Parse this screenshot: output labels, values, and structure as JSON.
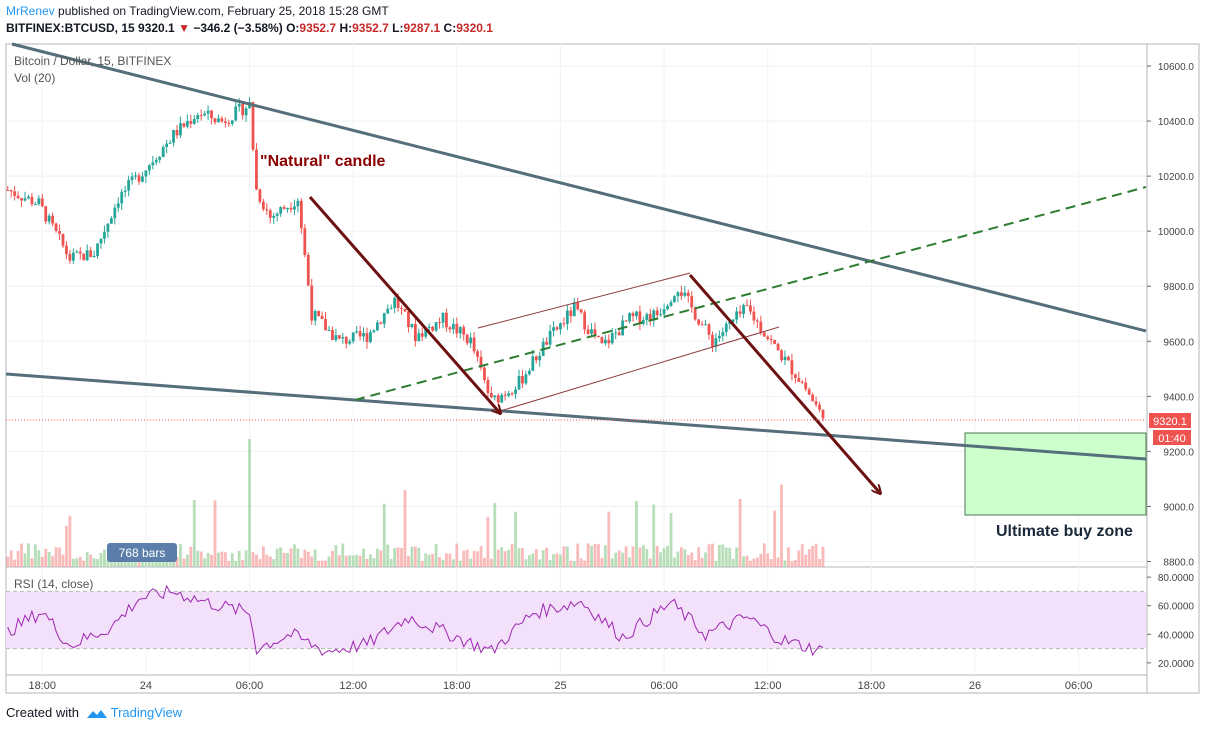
{
  "header": {
    "author": "MrRenev",
    "published": "published on TradingView.com, February 25, 2018 15:28 GMT",
    "symbol": "BITFINEX:BTCUSD, 15",
    "last": "9320.1",
    "change": "−346.2 (−3.58%)",
    "o_label": "O:",
    "o": "9352.7",
    "h_label": "H:",
    "h": "9352.7",
    "l_label": "L:",
    "l": "9287.1",
    "c_label": "C:",
    "c": "9320.1"
  },
  "footer": {
    "created": "Created with",
    "brand": "TradingView"
  },
  "colors": {
    "up": "#26a69a",
    "down": "#ef5350",
    "trend": "#546e7a",
    "channel": "#8d3b3b",
    "arrow": "#6d1010",
    "dashed": "#2e7d32",
    "buyzone": "#ccffcc",
    "rsi": "#9c27b0",
    "rsi_band": "#f3e0fa",
    "last_price": "#ef5350"
  },
  "chart_data": {
    "type": "candlestick",
    "title": "Bitcoin / Dollar, 15, BITFINEX",
    "volume_label": "Vol (20)",
    "rsi_label": "RSI (14, close)",
    "price_ticks": [
      "10600.0",
      "10400.0",
      "10200.0",
      "10000.0",
      "9800.0",
      "9600.0",
      "9400.0",
      "9200.0",
      "9000.0",
      "8800.0"
    ],
    "price_tick_values": [
      10600,
      10400,
      10200,
      10000,
      9800,
      9600,
      9400,
      9200,
      9000,
      8800
    ],
    "ylim": [
      8780,
      10680
    ],
    "rsi_ticks": [
      "80.0000",
      "60.0000",
      "40.0000",
      "20.0000"
    ],
    "rsi_tick_values": [
      80,
      60,
      40,
      20
    ],
    "rsi_band": [
      30,
      70
    ],
    "time_ticks": [
      "18:00",
      "24",
      "06:00",
      "12:00",
      "18:00",
      "25",
      "06:00",
      "12:00",
      "18:00",
      "26",
      "06:00"
    ],
    "time_tick_bars": [
      10,
      40,
      70,
      100,
      130,
      160,
      190,
      220,
      250,
      280,
      310
    ],
    "bars_visible": 330,
    "last_price_label": "9320.1",
    "countdown_label": "01:40",
    "last_price": 9320.1,
    "bars_badge": "768 bars",
    "annotations": {
      "natural_candle": "\"Natural\" candle",
      "buy_zone": "Ultimate buy zone"
    },
    "key_points": [
      {
        "bar": 0,
        "price": 10150
      },
      {
        "bar": 9,
        "price": 10100
      },
      {
        "bar": 18,
        "price": 9900
      },
      {
        "bar": 25,
        "price": 9920
      },
      {
        "bar": 32,
        "price": 10120
      },
      {
        "bar": 40,
        "price": 10230
      },
      {
        "bar": 48,
        "price": 10350
      },
      {
        "bar": 55,
        "price": 10430
      },
      {
        "bar": 62,
        "price": 10400
      },
      {
        "bar": 70,
        "price": 10460
      },
      {
        "bar": 72,
        "price": 10150
      },
      {
        "bar": 76,
        "price": 10050
      },
      {
        "bar": 84,
        "price": 10120
      },
      {
        "bar": 88,
        "price": 9700
      },
      {
        "bar": 96,
        "price": 9600
      },
      {
        "bar": 104,
        "price": 9620
      },
      {
        "bar": 112,
        "price": 9750
      },
      {
        "bar": 118,
        "price": 9620
      },
      {
        "bar": 126,
        "price": 9680
      },
      {
        "bar": 134,
        "price": 9600
      },
      {
        "bar": 140,
        "price": 9380
      },
      {
        "bar": 148,
        "price": 9450
      },
      {
        "bar": 156,
        "price": 9600
      },
      {
        "bar": 164,
        "price": 9720
      },
      {
        "bar": 172,
        "price": 9580
      },
      {
        "bar": 180,
        "price": 9680
      },
      {
        "bar": 188,
        "price": 9700
      },
      {
        "bar": 194,
        "price": 9800
      },
      {
        "bar": 204,
        "price": 9600
      },
      {
        "bar": 214,
        "price": 9720
      },
      {
        "bar": 222,
        "price": 9580
      },
      {
        "bar": 230,
        "price": 9450
      },
      {
        "bar": 236,
        "price": 9320
      }
    ],
    "rsi_points": [
      {
        "bar": 0,
        "v": 42
      },
      {
        "bar": 10,
        "v": 56
      },
      {
        "bar": 18,
        "v": 32
      },
      {
        "bar": 30,
        "v": 45
      },
      {
        "bar": 38,
        "v": 65
      },
      {
        "bar": 48,
        "v": 70
      },
      {
        "bar": 58,
        "v": 62
      },
      {
        "bar": 70,
        "v": 55
      },
      {
        "bar": 72,
        "v": 30
      },
      {
        "bar": 82,
        "v": 40
      },
      {
        "bar": 92,
        "v": 28
      },
      {
        "bar": 104,
        "v": 33
      },
      {
        "bar": 116,
        "v": 52
      },
      {
        "bar": 126,
        "v": 42
      },
      {
        "bar": 140,
        "v": 28
      },
      {
        "bar": 152,
        "v": 55
      },
      {
        "bar": 166,
        "v": 63
      },
      {
        "bar": 178,
        "v": 38
      },
      {
        "bar": 192,
        "v": 62
      },
      {
        "bar": 202,
        "v": 40
      },
      {
        "bar": 214,
        "v": 52
      },
      {
        "bar": 224,
        "v": 36
      },
      {
        "bar": 236,
        "v": 28
      }
    ]
  }
}
